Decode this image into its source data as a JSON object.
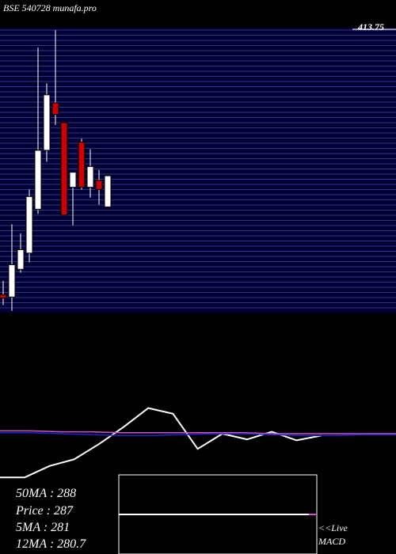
{
  "header": {
    "title": "BSE 540728 munafa.pro"
  },
  "chart_data": [
    {
      "type": "candlestick",
      "ylim": [
        168.5,
        413.75
      ],
      "yticks": [
        413.75
      ],
      "up_color": "#ffffff",
      "down_color": "#cc0000",
      "open": [
        184,
        182,
        206,
        220,
        258,
        309,
        350,
        333,
        277,
        316,
        277,
        283,
        260
      ],
      "high": [
        196,
        245,
        237,
        275,
        398,
        367,
        413,
        333,
        290,
        319,
        310,
        292,
        287
      ],
      "low": [
        175,
        170,
        203,
        212,
        254,
        299,
        331,
        253,
        244,
        275,
        268,
        262,
        260
      ],
      "close": [
        181,
        210,
        223,
        269,
        309,
        357,
        340,
        253,
        290,
        277,
        295,
        275,
        287
      ]
    },
    {
      "type": "line",
      "ylim": [
        0,
        100
      ],
      "series": [
        {
          "color": "#ffffff",
          "values": [
            14,
            14,
            26,
            33,
            49,
            67,
            87,
            81,
            44,
            60,
            54,
            62,
            53,
            58
          ]
        },
        {
          "color": "#cc55cc",
          "values": [
            63,
            63,
            62,
            62,
            61,
            61,
            61,
            61,
            61,
            60,
            60,
            60,
            60,
            60
          ]
        },
        {
          "color": "#2222cc",
          "values": [
            61,
            61,
            60,
            59,
            58,
            58,
            59,
            60,
            60,
            59,
            58,
            58,
            59,
            59
          ]
        }
      ]
    }
  ],
  "stats": [
    "50MA : 288",
    "Price   : 287",
    "5MA : 281",
    "12MA : 280.7"
  ],
  "live_label": "<<Live",
  "macd_label": "MACD"
}
